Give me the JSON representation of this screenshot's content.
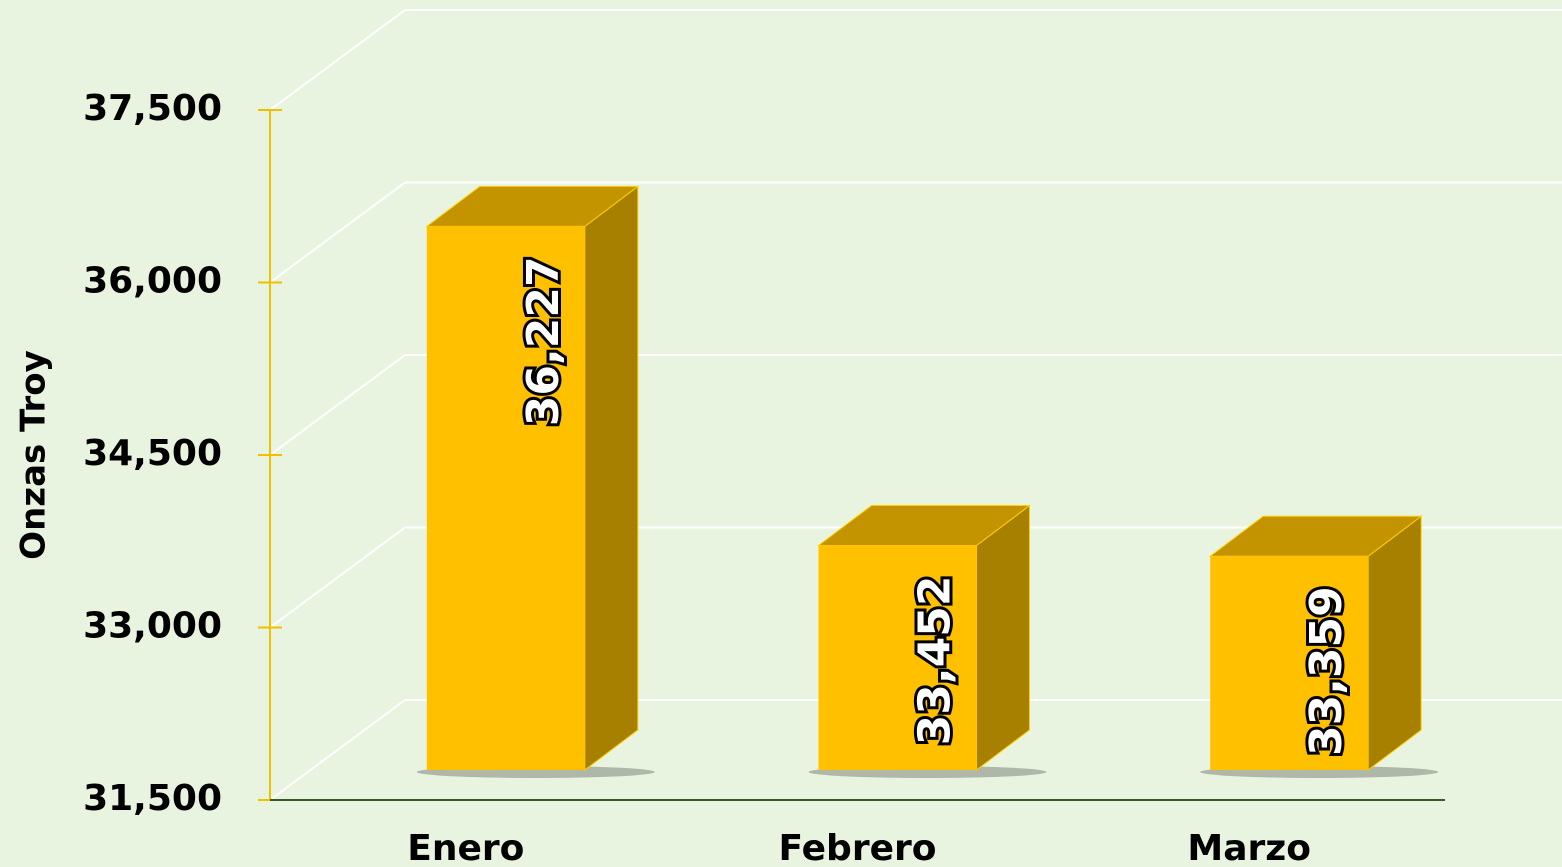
{
  "chart_data": {
    "type": "bar3d",
    "y_label": "Onzas Troy",
    "categories": [
      "Enero",
      "Febrero",
      "Marzo"
    ],
    "values": [
      36227,
      33452,
      33359
    ],
    "value_labels": [
      "36,227",
      "33,452",
      "33,359"
    ],
    "color": "#ffc000",
    "ylim": [
      31500,
      37500
    ],
    "yticks": [
      {
        "value": 31500,
        "label": "31,500"
      },
      {
        "value": 33000,
        "label": "33,000"
      },
      {
        "value": 34500,
        "label": "34,500"
      },
      {
        "value": 36000,
        "label": "36,000"
      },
      {
        "value": 37500,
        "label": "37,500"
      }
    ],
    "grid": true
  }
}
